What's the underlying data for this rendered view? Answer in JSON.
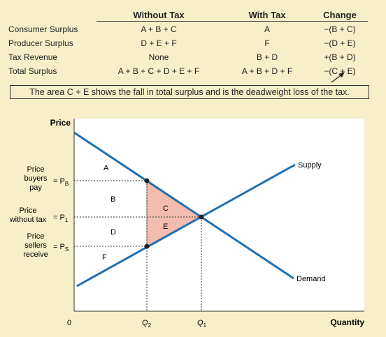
{
  "table": {
    "headers": {
      "without": "Without Tax",
      "with": "With Tax",
      "change": "Change"
    },
    "rows": [
      {
        "label": "Consumer Surplus",
        "without": "A + B + C",
        "with": "A",
        "change": "−(B + C)"
      },
      {
        "label": "Producer Surplus",
        "without": "D + E + F",
        "with": "F",
        "change": "−(D + E)"
      },
      {
        "label": "Tax Revenue",
        "without": "None",
        "with": "B + D",
        "change": "+(B + D)"
      },
      {
        "label": "Total Surplus",
        "without": "A + B + C + D + E + F",
        "with": "A + B + D + F",
        "change": "−(C + E)"
      }
    ],
    "note": "The area C + E shows the fall in total surplus and is the deadweight loss of the tax."
  },
  "graph": {
    "y_axis_label": "Price",
    "x_axis_label": "Quantity",
    "origin_label": "0",
    "supply_label": "Supply",
    "demand_label": "Demand",
    "price_labels": {
      "buyers": {
        "text_lines": [
          "Price",
          "buyers",
          "pay"
        ],
        "symbol": "= P",
        "sub": "B"
      },
      "without": {
        "text_lines": [
          "Price",
          "without tax"
        ],
        "symbol": "= P",
        "sub": "1"
      },
      "sellers": {
        "text_lines": [
          "Price",
          "sellers",
          "receive"
        ],
        "symbol": "= P",
        "sub": "S"
      }
    },
    "quantity_labels": {
      "q2": {
        "symbol": "Q",
        "sub": "2"
      },
      "q1": {
        "symbol": "Q",
        "sub": "1"
      }
    },
    "areas": [
      "A",
      "B",
      "C",
      "D",
      "E",
      "F"
    ],
    "colors": {
      "line_blue": "#1f6fb0",
      "dwl_fill": "#f2bcae",
      "dwl_edge": "#d97a6a",
      "plot_bg": "#ffffff",
      "page_bg": "#f6efc9"
    }
  }
}
